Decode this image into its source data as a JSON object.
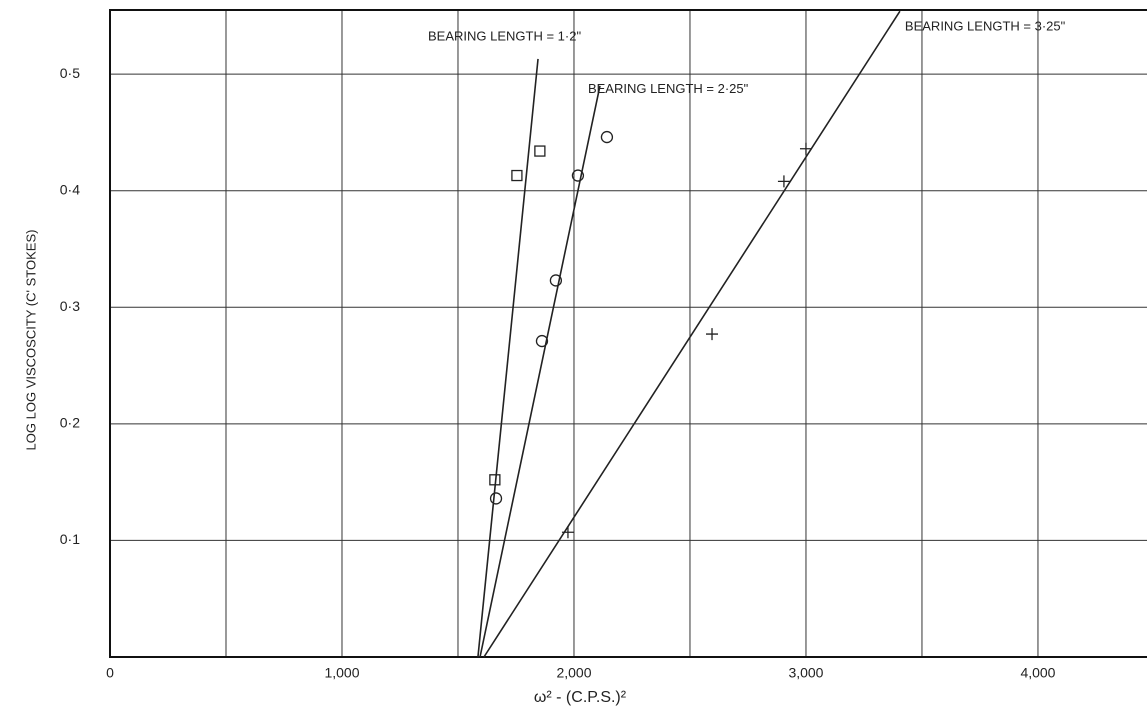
{
  "chart_data": {
    "type": "scatter",
    "xlabel": "ω² - (C.P.S.)²",
    "ylabel": "LOG LOG VISCOSCITY (C' STOKES)",
    "xlim": [
      0,
      4470
    ],
    "ylim": [
      0,
      0.555
    ],
    "xticks": [
      0,
      {
        "value": 1000,
        "label": "1,000"
      },
      {
        "value": 2000,
        "label": "2,000"
      },
      {
        "value": 3000,
        "label": "3,000"
      },
      {
        "value": 4000,
        "label": "4,000"
      }
    ],
    "xgrid": [
      500,
      1000,
      1500,
      2000,
      2500,
      3000,
      3500,
      4000
    ],
    "yticks": [
      {
        "value": 0.1,
        "label": "0·1"
      },
      {
        "value": 0.2,
        "label": "0·2"
      },
      {
        "value": 0.3,
        "label": "0·3"
      },
      {
        "value": 0.4,
        "label": "0·4"
      },
      {
        "value": 0.5,
        "label": "0·5"
      }
    ],
    "grid": true,
    "series": [
      {
        "name": "BEARING LENGTH = 1·2\"",
        "marker": "square",
        "color": "#222",
        "x": [
          1659,
          1754,
          1853
        ],
        "values": [
          0.152,
          0.413,
          0.434
        ],
        "fit": {
          "x": [
            1586,
            1845
          ],
          "values": [
            0,
            0.513
          ]
        }
      },
      {
        "name": "BEARING LENGTH = 2·25\"",
        "marker": "circle",
        "color": "#222",
        "x": [
          1664,
          1862,
          1922,
          2017,
          2142
        ],
        "values": [
          0.136,
          0.271,
          0.323,
          0.413,
          0.446
        ],
        "fit": {
          "x": [
            1595,
            2112
          ],
          "values": [
            0,
            0.49
          ]
        }
      },
      {
        "name": "BEARING LENGTH = 3·25\"",
        "marker": "plus",
        "color": "#222",
        "x": [
          1974,
          2595,
          2905,
          3000
        ],
        "values": [
          0.107,
          0.277,
          0.408,
          0.436
        ],
        "fit": {
          "x": [
            1612,
            3405
          ],
          "values": [
            0,
            0.554
          ]
        }
      }
    ]
  }
}
